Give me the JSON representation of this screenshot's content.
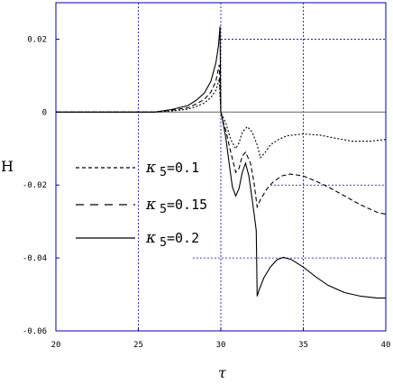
{
  "chart_data": {
    "type": "line",
    "xlabel": "τ",
    "ylabel": "H",
    "xlim": [
      20,
      40
    ],
    "ylim": [
      -0.06,
      0.03
    ],
    "x_ticks": [
      "20",
      "25",
      "30",
      "35",
      "40"
    ],
    "y_ticks": [
      "0.02",
      "0",
      "-0.02",
      "-0.04",
      "-0.06"
    ],
    "x_tick_values": [
      20,
      25,
      30,
      35,
      40
    ],
    "y_tick_values": [
      0.02,
      0,
      -0.02,
      -0.04,
      -0.06
    ],
    "grid": true,
    "legend_position": "left",
    "series": [
      {
        "name": "κ5=0.1",
        "legend_symbol": "κ",
        "legend_sub": "5",
        "legend_value": "=0.1",
        "style": "dotted",
        "x": [
          20,
          26,
          27,
          28,
          28.5,
          29,
          29.4,
          29.7,
          29.9,
          30.0,
          30.1,
          30.3,
          30.6,
          30.9,
          31.1,
          31.3,
          31.6,
          31.9,
          32.2,
          32.4,
          32.7,
          33.0,
          33.5,
          34.0,
          35.0,
          36.0,
          37.0,
          38.0,
          39.0,
          40.0
        ],
        "y": [
          0,
          0,
          0.0003,
          0.0008,
          0.0015,
          0.0025,
          0.004,
          0.006,
          0.009,
          0.0,
          -0.001,
          -0.003,
          -0.0075,
          -0.01,
          -0.0085,
          -0.0055,
          -0.004,
          -0.0055,
          -0.009,
          -0.0125,
          -0.011,
          -0.009,
          -0.0075,
          -0.0065,
          -0.006,
          -0.0063,
          -0.0072,
          -0.008,
          -0.008,
          -0.0075
        ]
      },
      {
        "name": "κ5=0.15",
        "legend_symbol": "κ",
        "legend_sub": "5",
        "legend_value": "=0.15",
        "style": "dashed",
        "x": [
          20,
          26,
          27,
          28,
          28.5,
          29,
          29.4,
          29.7,
          29.9,
          30.0,
          30.1,
          30.3,
          30.6,
          30.9,
          31.1,
          31.3,
          31.5,
          31.8,
          32.0,
          32.2,
          32.4,
          32.8,
          33.2,
          33.7,
          34.2,
          35.0,
          35.8,
          36.5,
          37.5,
          38.5,
          39.5,
          40.0
        ],
        "y": [
          0,
          0,
          0.0005,
          0.0012,
          0.0022,
          0.0035,
          0.0055,
          0.0085,
          0.013,
          0.0,
          -0.002,
          -0.005,
          -0.011,
          -0.0165,
          -0.0155,
          -0.012,
          -0.011,
          -0.014,
          -0.019,
          -0.026,
          -0.024,
          -0.021,
          -0.019,
          -0.0175,
          -0.017,
          -0.0175,
          -0.019,
          -0.0205,
          -0.023,
          -0.0255,
          -0.0275,
          -0.028
        ]
      },
      {
        "name": "κ5=0.2",
        "legend_symbol": "κ",
        "legend_sub": "5",
        "legend_value": "=0.2",
        "style": "solid",
        "x": [
          20,
          26,
          27,
          28,
          28.5,
          29,
          29.4,
          29.7,
          29.85,
          29.95,
          30.0,
          30.1,
          30.3,
          30.5,
          30.7,
          30.9,
          31.1,
          31.3,
          31.5,
          31.7,
          31.9,
          32.05,
          32.15,
          32.2,
          32.3,
          32.6,
          33.0,
          33.4,
          33.8,
          34.3,
          35.0,
          35.7,
          36.5,
          37.5,
          38.5,
          39.5,
          40.0
        ],
        "y": [
          0,
          0,
          0.0007,
          0.0018,
          0.0032,
          0.0052,
          0.0085,
          0.0135,
          0.018,
          0.0235,
          0.0,
          -0.002,
          -0.007,
          -0.014,
          -0.0205,
          -0.023,
          -0.021,
          -0.0165,
          -0.014,
          -0.0175,
          -0.024,
          -0.029,
          -0.0325,
          -0.0505,
          -0.049,
          -0.0455,
          -0.0425,
          -0.0405,
          -0.0398,
          -0.0405,
          -0.0425,
          -0.045,
          -0.0475,
          -0.0495,
          -0.0505,
          -0.051,
          -0.051
        ]
      }
    ],
    "reference_lines": [
      {
        "y": 0.02,
        "from_x": 30,
        "to_x": 40
      },
      {
        "y": 0.0,
        "from_x": 20,
        "to_x": 40
      },
      {
        "y": -0.02,
        "from_x": 33,
        "to_x": 40
      },
      {
        "y": -0.04,
        "from_x": 28.3,
        "to_x": 40
      }
    ]
  }
}
